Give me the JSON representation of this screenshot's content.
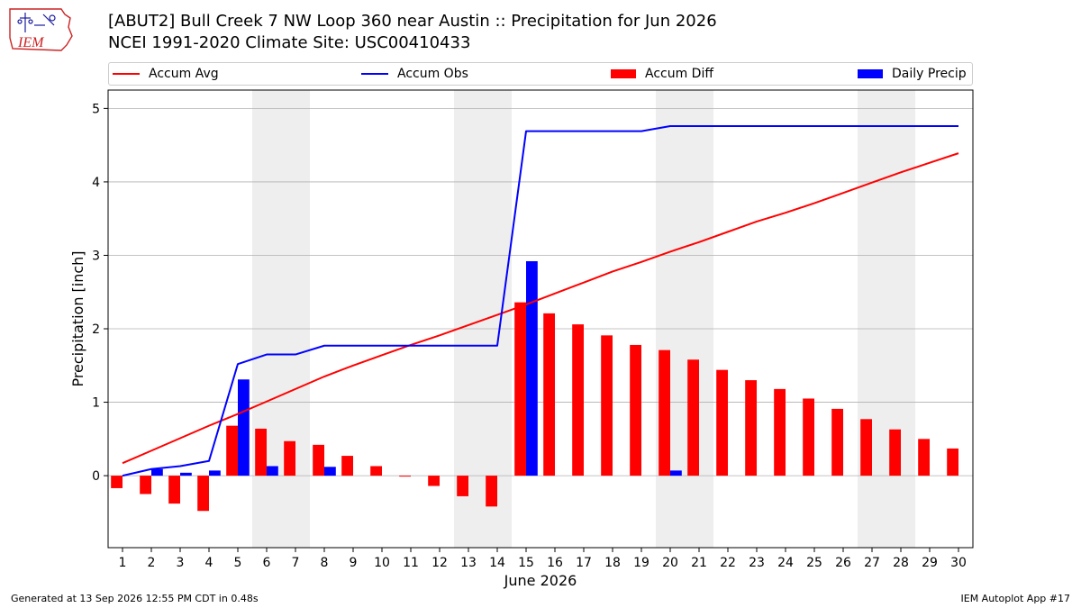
{
  "header": {
    "title_line1": "[ABUT2] Bull Creek 7 NW Loop 360 near Austin :: Precipitation for Jun 2026",
    "title_line2": "NCEI 1991-2020 Climate Site: USC00410433",
    "logo_text": "IEM"
  },
  "footer": {
    "left": "Generated at 13 Sep 2026 12:55 PM CDT in 0.48s",
    "right": "IEM Autoplot App #17"
  },
  "colors": {
    "avg": "#ff0000",
    "obs": "#0000ff",
    "diff": "#ff0000",
    "daily": "#0000ff",
    "weekend_shade": "#eeeeee",
    "grid": "#b0b0b0"
  },
  "chart_data": {
    "type": "bar",
    "xlabel": "June 2026",
    "ylabel": "Precipitation [inch]",
    "xlim": [
      0.5,
      30.5
    ],
    "ylim": [
      -0.98,
      5.25
    ],
    "yticks": [
      0,
      1,
      2,
      3,
      4,
      5
    ],
    "x": [
      1,
      2,
      3,
      4,
      5,
      6,
      7,
      8,
      9,
      10,
      11,
      12,
      13,
      14,
      15,
      16,
      17,
      18,
      19,
      20,
      21,
      22,
      23,
      24,
      25,
      26,
      27,
      28,
      29,
      30
    ],
    "weekend_spans": [
      [
        5.5,
        7.5
      ],
      [
        12.5,
        14.5
      ],
      [
        19.5,
        21.5
      ],
      [
        26.5,
        28.5
      ]
    ],
    "grid": "horizontal",
    "legend": "top",
    "series": [
      {
        "name": "Accum Avg",
        "kind": "line",
        "values": [
          0.17,
          0.34,
          0.51,
          0.68,
          0.84,
          1.01,
          1.18,
          1.35,
          1.5,
          1.64,
          1.78,
          1.91,
          2.05,
          2.19,
          2.33,
          2.48,
          2.63,
          2.78,
          2.91,
          3.05,
          3.18,
          3.32,
          3.46,
          3.58,
          3.71,
          3.85,
          3.99,
          4.13,
          4.26,
          4.39
        ]
      },
      {
        "name": "Accum Obs",
        "kind": "line",
        "values": [
          0.0,
          0.09,
          0.13,
          0.2,
          1.52,
          1.65,
          1.65,
          1.77,
          1.77,
          1.77,
          1.77,
          1.77,
          1.77,
          1.77,
          4.69,
          4.69,
          4.69,
          4.69,
          4.69,
          4.76,
          4.76,
          4.76,
          4.76,
          4.76,
          4.76,
          4.76,
          4.76,
          4.76,
          4.76,
          4.76
        ]
      },
      {
        "name": "Accum Diff",
        "kind": "bar",
        "offset": -0.2,
        "values": [
          -0.17,
          -0.25,
          -0.38,
          -0.48,
          0.68,
          0.64,
          0.47,
          0.42,
          0.27,
          0.13,
          -0.01,
          -0.14,
          -0.28,
          -0.42,
          2.36,
          2.21,
          2.06,
          1.91,
          1.78,
          1.71,
          1.58,
          1.44,
          1.3,
          1.18,
          1.05,
          0.91,
          0.77,
          0.63,
          0.5,
          0.37
        ]
      },
      {
        "name": "Daily Precip",
        "kind": "bar",
        "offset": 0.2,
        "values": [
          0.0,
          0.09,
          0.04,
          0.07,
          1.31,
          0.13,
          0.0,
          0.12,
          0.0,
          0.0,
          0.0,
          0.0,
          0.0,
          0.0,
          2.92,
          0.0,
          0.0,
          0.0,
          0.0,
          0.07,
          0.0,
          0.0,
          0.0,
          0.0,
          0.0,
          0.0,
          0.0,
          0.0,
          0.0,
          0.0
        ]
      }
    ]
  }
}
